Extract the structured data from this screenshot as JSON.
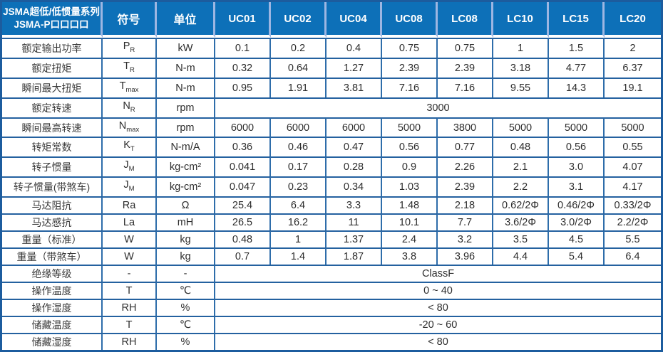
{
  "header": {
    "title_line1": "JSMA超低/低惯量系列",
    "title_line2": "JSMA-P口口口口",
    "symbol_label": "符号",
    "unit_label": "单位",
    "models": [
      "UC01",
      "UC02",
      "UC04",
      "UC08",
      "LC08",
      "LC10",
      "LC15",
      "LC20"
    ]
  },
  "rows": [
    {
      "label": "额定输出功率",
      "sym": "P",
      "sub": "R",
      "unit": "kW",
      "values": [
        "0.1",
        "0.2",
        "0.4",
        "0.75",
        "0.75",
        "1",
        "1.5",
        "2"
      ]
    },
    {
      "label": "额定扭矩",
      "sym": "T",
      "sub": "R",
      "unit": "N-m",
      "values": [
        "0.32",
        "0.64",
        "1.27",
        "2.39",
        "2.39",
        "3.18",
        "4.77",
        "6.37"
      ]
    },
    {
      "label": "瞬间最大扭矩",
      "sym": "T",
      "sub": "max",
      "unit": "N-m",
      "values": [
        "0.95",
        "1.91",
        "3.81",
        "7.16",
        "7.16",
        "9.55",
        "14.3",
        "19.1"
      ]
    },
    {
      "label": "额定转速",
      "sym": "N",
      "sub": "R",
      "unit": "rpm",
      "merged": "3000"
    },
    {
      "label": "瞬间最高转速",
      "sym": "N",
      "sub": "max",
      "unit": "rpm",
      "values": [
        "6000",
        "6000",
        "6000",
        "5000",
        "3800",
        "5000",
        "5000",
        "5000"
      ]
    },
    {
      "label": "转矩常数",
      "sym": "K",
      "sub": "T",
      "unit": "N-m/A",
      "values": [
        "0.36",
        "0.46",
        "0.47",
        "0.56",
        "0.77",
        "0.48",
        "0.56",
        "0.55"
      ]
    },
    {
      "label": "转子惯量",
      "sym": "J",
      "sub": "M",
      "unit": "kg-cm²",
      "values": [
        "0.041",
        "0.17",
        "0.28",
        "0.9",
        "2.26",
        "2.1",
        "3.0",
        "4.07"
      ]
    },
    {
      "label": "转子惯量(带煞车)",
      "sym": "J",
      "sub": "M",
      "unit": "kg-cm²",
      "values": [
        "0.047",
        "0.23",
        "0.34",
        "1.03",
        "2.39",
        "2.2",
        "3.1",
        "4.17"
      ]
    },
    {
      "label": "马达阻抗",
      "sym": "Ra",
      "sub": "",
      "unit": "Ω",
      "values": [
        "25.4",
        "6.4",
        "3.3",
        "1.48",
        "2.18",
        "0.62/2Φ",
        "0.46/2Φ",
        "0.33/2Φ"
      ]
    },
    {
      "label": "马达感抗",
      "sym": "La",
      "sub": "",
      "unit": "mH",
      "values": [
        "26.5",
        "16.2",
        "11",
        "10.1",
        "7.7",
        "3.6/2Φ",
        "3.0/2Φ",
        "2.2/2Φ"
      ]
    },
    {
      "label": "重量（标准）",
      "sym": "W",
      "sub": "",
      "unit": "kg",
      "values": [
        "0.48",
        "1",
        "1.37",
        "2.4",
        "3.2",
        "3.5",
        "4.5",
        "5.5"
      ]
    },
    {
      "label": "重量（带煞车）",
      "sym": "W",
      "sub": "",
      "unit": "kg",
      "values": [
        "0.7",
        "1.4",
        "1.87",
        "3.8",
        "3.96",
        "4.4",
        "5.4",
        "6.4"
      ]
    },
    {
      "label": "绝缘等级",
      "sym": "-",
      "sub": "",
      "unit": "-",
      "merged": "ClassF"
    },
    {
      "label": "操作温度",
      "sym": "T",
      "sub": "",
      "unit": "℃",
      "merged": "0 ~ 40"
    },
    {
      "label": "操作湿度",
      "sym": "RH",
      "sub": "",
      "unit": "%",
      "merged": "< 80"
    },
    {
      "label": "储藏温度",
      "sym": "T",
      "sub": "",
      "unit": "℃",
      "merged": "-20 ~ 60"
    },
    {
      "label": "储藏湿度",
      "sym": "RH",
      "sub": "",
      "unit": "%",
      "merged": "< 80"
    }
  ],
  "colors": {
    "header_bg": "#0d70b8",
    "header_text": "#ffffff",
    "header_divider": "#9db6e2",
    "grid_line": "#24619f",
    "outer_border": "#1c5c9e",
    "cell_text": "#2d2d2d"
  }
}
